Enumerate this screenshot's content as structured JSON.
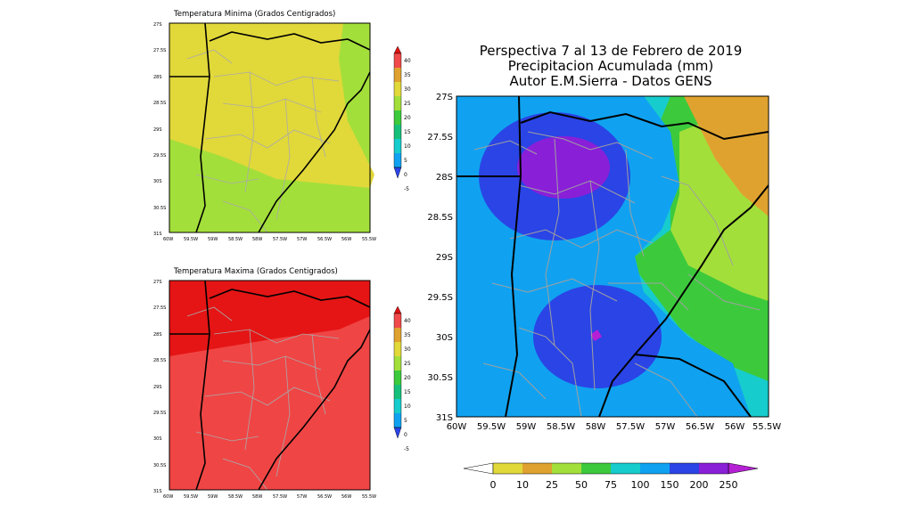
{
  "main_map": {
    "title_lines": [
      "Perspectiva 7 al 13 de Febrero de 2019",
      "Precipitacion Acumulada (mm)",
      "Autor E.M.Sierra - Datos GENS"
    ],
    "lat_labels": [
      "27S",
      "27.5S",
      "28S",
      "28.5S",
      "29S",
      "29.5S",
      "30S",
      "30.5S",
      "31S"
    ],
    "lon_labels": [
      "60W",
      "59.5W",
      "59W",
      "58.5W",
      "58W",
      "57.5W",
      "57W",
      "56.5W",
      "56W",
      "55.5W"
    ]
  },
  "tmin_map": {
    "title": "Temperatura Minima (Grados Centigrados)",
    "lat_labels": [
      "27S",
      "27.5S",
      "28S",
      "28.5S",
      "29S",
      "29.5S",
      "30S",
      "30.5S",
      "31S"
    ],
    "lon_labels": [
      "60W",
      "59.5W",
      "59W",
      "58.5W",
      "58W",
      "57.5W",
      "57W",
      "56.5W",
      "56W",
      "55.5W"
    ]
  },
  "tmax_map": {
    "title": "Temperatura Maxima (Grados Centigrados)",
    "lat_labels": [
      "27S",
      "27.5S",
      "28S",
      "28.5S",
      "29S",
      "29.5S",
      "30S",
      "30.5S",
      "31S"
    ],
    "lon_labels": [
      "60W",
      "59.5W",
      "59W",
      "58.5W",
      "58W",
      "57.5W",
      "57W",
      "56.5W",
      "56W",
      "55.5W"
    ]
  },
  "precip_colorbar": {
    "labels": [
      "0",
      "10",
      "25",
      "50",
      "75",
      "100",
      "150",
      "200",
      "250"
    ],
    "colors": [
      "#ffffff",
      "#e1d83a",
      "#e0a22f",
      "#a3df3a",
      "#3cca3c",
      "#17cccc",
      "#10a2f0",
      "#2a44e6",
      "#8a1fd8",
      "#b520d5"
    ]
  },
  "temp_colorbar": {
    "labels": [
      "40",
      "35",
      "30",
      "25",
      "20",
      "15",
      "10",
      "5",
      "0",
      "-5"
    ],
    "colors": [
      "#e01010",
      "#f04a4a",
      "#e0a22f",
      "#e1d83a",
      "#a3df3a",
      "#3cca3c",
      "#17c07a",
      "#17cccc",
      "#10a2f0",
      "#2a44e6"
    ]
  },
  "colors": {
    "tmin_yellow": "#e1d83a",
    "tmin_green": "#a3df3a",
    "tmax_red": "#f04545",
    "tmax_darkred": "#e51515"
  }
}
